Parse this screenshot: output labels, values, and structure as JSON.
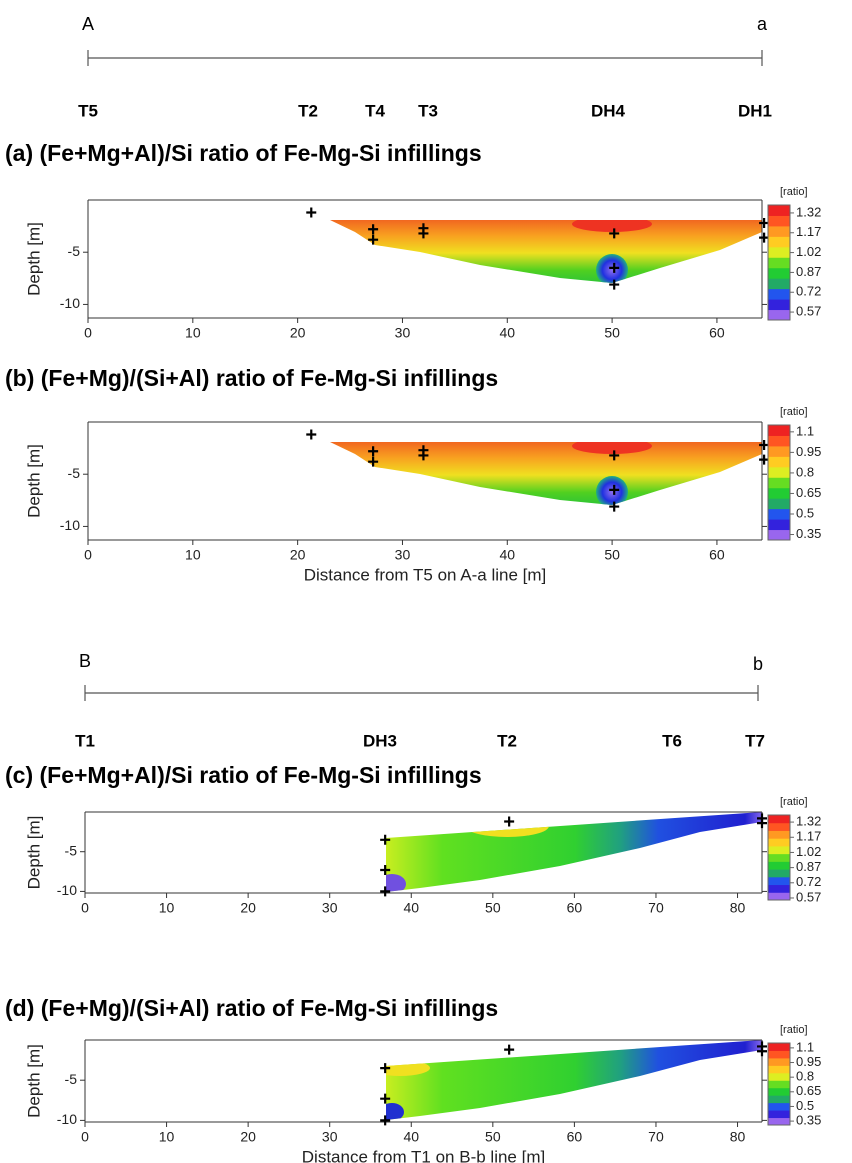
{
  "profiles": [
    {
      "start": "A",
      "end": "a",
      "boreholes": [
        "T5",
        "T2",
        "T4",
        "T3",
        "DH4",
        "DH1"
      ]
    },
    {
      "start": "B",
      "end": "b",
      "boreholes": [
        "T1",
        "DH3",
        "T2",
        "T6",
        "T7"
      ]
    }
  ],
  "chart_data": [
    {
      "type": "contour",
      "title": "(a) (Fe+Mg+Al)/Si ratio of Fe-Mg-Si infillings",
      "ylabel": "Depth [m]",
      "xlim": [
        0,
        64.3
      ],
      "ylim": [
        -11.3,
        0
      ],
      "xticks": [
        0,
        10,
        20,
        30,
        40,
        50,
        60
      ],
      "yticks": [
        -5,
        -10
      ],
      "points": {
        "x": [
          21.3,
          27.2,
          27.2,
          32,
          32,
          50.2,
          50.2,
          50.2,
          64.5,
          64.5
        ],
        "y": [
          -1.2,
          -2.8,
          -3.8,
          -2.7,
          -3.2,
          -3.2,
          -6.5,
          -8.1,
          -2.2,
          -3.6
        ]
      },
      "colorbar": {
        "label": "[ratio]",
        "lim": [
          0.51,
          1.38
        ],
        "ticks": [
          1.32,
          1.17,
          1.02,
          0.87,
          0.72,
          0.57
        ]
      }
    },
    {
      "type": "contour",
      "title": "(b) (Fe+Mg)/(Si+Al) ratio of Fe-Mg-Si infillings",
      "ylabel": "Depth [m]",
      "xlabel": "Distance from T5 on A-a line [m]",
      "xlim": [
        0,
        64.3
      ],
      "ylim": [
        -11.3,
        0
      ],
      "xticks": [
        0,
        10,
        20,
        30,
        40,
        50,
        60
      ],
      "yticks": [
        -5,
        -10
      ],
      "points": {
        "x": [
          21.3,
          27.2,
          27.2,
          32,
          32,
          50.2,
          50.2,
          50.2,
          64.5,
          64.5
        ],
        "y": [
          -1.2,
          -2.8,
          -3.8,
          -2.7,
          -3.2,
          -3.2,
          -6.5,
          -8.1,
          -2.2,
          -3.6
        ]
      },
      "colorbar": {
        "label": "[ratio]",
        "lim": [
          0.31,
          1.15
        ],
        "ticks": [
          1.1,
          0.95,
          0.8,
          0.65,
          0.5,
          0.35
        ]
      }
    },
    {
      "type": "contour",
      "title": "(c) (Fe+Mg+Al)/Si ratio of Fe-Mg-Si infillings",
      "ylabel": "Depth [m]",
      "xlim": [
        0,
        83
      ],
      "ylim": [
        -10.2,
        0
      ],
      "xticks": [
        0,
        10,
        20,
        30,
        40,
        50,
        60,
        70,
        80
      ],
      "yticks": [
        -5,
        -10
      ],
      "points": {
        "x": [
          36.8,
          36.8,
          36.8,
          52,
          83,
          83
        ],
        "y": [
          -3.5,
          -7.3,
          -10,
          -1.2,
          -0.8,
          -1.4
        ]
      },
      "colorbar": {
        "label": "[ratio]",
        "lim": [
          0.55,
          1.39
        ],
        "ticks": [
          1.32,
          1.17,
          1.02,
          0.87,
          0.72,
          0.57
        ]
      }
    },
    {
      "type": "contour",
      "title": "(d) (Fe+Mg)/(Si+Al) ratio of Fe-Mg-Si infillings",
      "ylabel": "Depth [m]",
      "xlabel": "Distance from T1 on B-b line [m]",
      "xlim": [
        0,
        83
      ],
      "ylim": [
        -10.2,
        0
      ],
      "xticks": [
        0,
        10,
        20,
        30,
        40,
        50,
        60,
        70,
        80
      ],
      "yticks": [
        -5,
        -10
      ],
      "points": {
        "x": [
          36.8,
          36.8,
          36.8,
          52,
          83,
          83
        ],
        "y": [
          -3.5,
          -7.3,
          -10,
          -1.2,
          -0.8,
          -1.4
        ]
      },
      "colorbar": {
        "label": "[ratio]",
        "lim": [
          0.31,
          1.15
        ],
        "ticks": [
          1.1,
          0.95,
          0.8,
          0.65,
          0.5,
          0.35
        ]
      }
    }
  ],
  "colormap": [
    "#9966ee",
    "#3322dd",
    "#2255ee",
    "#22aa66",
    "#22cc33",
    "#66dd22",
    "#ddee22",
    "#ffcc22",
    "#ff9922",
    "#ff5522",
    "#ee2222"
  ]
}
